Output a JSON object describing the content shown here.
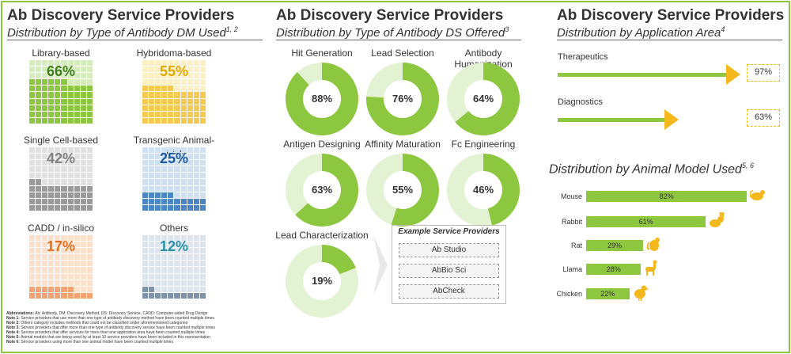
{
  "panel1": {
    "title": "Ab Discovery Service Providers",
    "subtitle": "Distribution by Type of Antibody DM Used",
    "subtitle_sup": "1, 2"
  },
  "panel2": {
    "title": "Ab Discovery Service Providers",
    "subtitle": "Distribution by Type of Antibody DS Offered",
    "subtitle_sup": "3"
  },
  "panel3": {
    "title": "Ab Discovery Service Providers",
    "subtitle": "Distribution by Application Area",
    "subtitle_sup": "4"
  },
  "panel4": {
    "subtitle": "Distribution by Animal Model Used",
    "subtitle_sup": "5, 6"
  },
  "example": {
    "title": "Example Service Providers",
    "items": [
      "Ab Studio",
      "AbBio Sci",
      "AbCheck"
    ]
  },
  "notes": [
    {
      "k": "Abbreviations:",
      "v": " Ab: Antibody, DM: Discovery Method, DS: Discovery Service, CADD: Computer-aided Drug Design"
    },
    {
      "k": "Note 1:",
      "v": " Service providers that use more than one type of antibody discovery method have been counted multiple times"
    },
    {
      "k": "Note 2:",
      "v": " Others category includes methods that could not be classified under aforementioned categories"
    },
    {
      "k": "Note 3:",
      "v": " Service providers that offer more than one type of antibody discovery service have been counted multiple times"
    },
    {
      "k": "Note 4:",
      "v": " Service providers that offer services for more than one application area have been counted multiple times"
    },
    {
      "k": "Note 5:",
      "v": " Animal models that are being used by at least 10 service providers have been included in this representation"
    },
    {
      "k": "Note 6:",
      "v": " Service providers using more than one animal model have been counted multiple times"
    }
  ],
  "colors": {
    "accent": "#8dc63f",
    "arrow": "#f5b81c"
  },
  "chart_data": [
    {
      "type": "waffle",
      "title": "Distribution by Type of Antibody DM Used",
      "categories": [
        "Library-based",
        "Hybridoma-based",
        "Single Cell-based",
        "Transgenic Animal-based",
        "CADD / in-silico",
        "Others"
      ],
      "values": [
        66,
        55,
        42,
        25,
        17,
        12
      ],
      "labels": [
        "66%",
        "55%",
        "42%",
        "25%",
        "17%",
        "12%"
      ],
      "colors": [
        {
          "light": "#d5ecbd",
          "dark": "#8dc63f",
          "text": "#3f7d1a"
        },
        {
          "light": "#fcefc4",
          "dark": "#f6ca52",
          "text": "#e0a800"
        },
        {
          "light": "#e0e0e0",
          "dark": "#9a9a9a",
          "text": "#808080"
        },
        {
          "light": "#cfe0f3",
          "dark": "#4b86c7",
          "text": "#1f5aa0"
        },
        {
          "light": "#fbe0cc",
          "dark": "#f4a370",
          "text": "#e07020"
        },
        {
          "light": "#dde4ec",
          "dark": "#7f93a8",
          "text": "#2b8fa8"
        }
      ]
    },
    {
      "type": "donut",
      "title": "Distribution by Type of Antibody DS Offered",
      "categories": [
        "Hit Generation",
        "Lead Selection",
        "Antibody Humanization",
        "Antigen Designing",
        "Affinity Maturation",
        "Fc Engineering",
        "Lead Characterization"
      ],
      "values": [
        88,
        76,
        64,
        63,
        55,
        46,
        19
      ],
      "labels": [
        "88%",
        "76%",
        "64%",
        "63%",
        "55%",
        "46%",
        "19%"
      ]
    },
    {
      "type": "bar",
      "orientation": "horizontal",
      "title": "Distribution by Application Area",
      "categories": [
        "Therapeutics",
        "Diagnostics"
      ],
      "values": [
        97,
        63
      ],
      "labels": [
        "97%",
        "63%"
      ]
    },
    {
      "type": "bar",
      "orientation": "horizontal",
      "title": "Distribution by Animal Model Used",
      "categories": [
        "Mouse",
        "Rabbit",
        "Rat",
        "Llama",
        "Chicken"
      ],
      "values": [
        82,
        61,
        29,
        28,
        22
      ],
      "labels": [
        "82%",
        "61%",
        "29%",
        "28%",
        "22%"
      ],
      "icons": [
        "mouse-icon",
        "rabbit-icon",
        "rat-icon",
        "llama-icon",
        "chicken-icon"
      ]
    }
  ]
}
